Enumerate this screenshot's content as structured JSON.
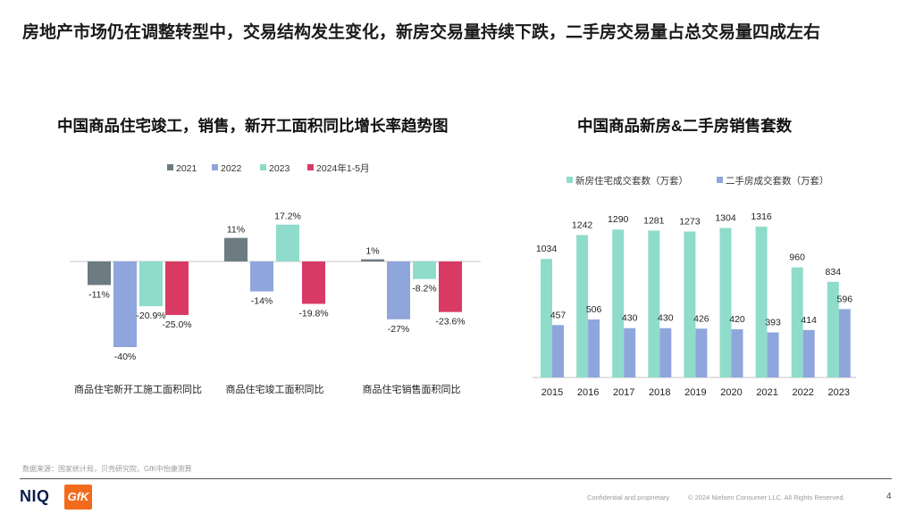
{
  "slide_title": "房地产市场仍在调整转型中，交易结构发生变化，新房交易量持续下跌，二手房交易量占总交易量四成左右",
  "chart_data": [
    {
      "type": "bar",
      "title": "中国商品住宅竣工，销售，新开工面积同比增长率趋势图",
      "categories": [
        "商品住宅新开工施工面积同比",
        "商品住宅竣工面积同比",
        "商品住宅销售面积同比"
      ],
      "series": [
        {
          "name": "2021",
          "color": "#6d7b82",
          "values": [
            -11,
            11,
            1
          ],
          "labels": [
            "-11%",
            "11%",
            "1%"
          ]
        },
        {
          "name": "2022",
          "color": "#8fa6dc",
          "values": [
            -40,
            -14,
            -27
          ],
          "labels": [
            "-40%",
            "-14%",
            "-27%"
          ]
        },
        {
          "name": "2023",
          "color": "#8fdccb",
          "values": [
            -20.9,
            17.2,
            -8.2
          ],
          "labels": [
            "-20.9%",
            "17.2%",
            "-8.2%"
          ]
        },
        {
          "name": "2024年1-5月",
          "color": "#d93a64",
          "values": [
            -25.0,
            -19.8,
            -23.6
          ],
          "labels": [
            "-25.0%",
            "-19.8%",
            "-23.6%"
          ]
        }
      ],
      "legend": "top",
      "ylim": [
        -45,
        20
      ],
      "grid": false
    },
    {
      "type": "bar",
      "title": "中国商品新房&二手房销售套数",
      "categories": [
        "2015",
        "2016",
        "2017",
        "2018",
        "2019",
        "2020",
        "2021",
        "2022",
        "2023"
      ],
      "series": [
        {
          "name": "新房住宅成交套数（万套）",
          "color": "#8fdccb",
          "values": [
            1034,
            1242,
            1290,
            1281,
            1273,
            1304,
            1316,
            960,
            834
          ]
        },
        {
          "name": "二手房成交套数（万套）",
          "color": "#8fa6dc",
          "values": [
            457,
            506,
            430,
            430,
            426,
            420,
            393,
            414,
            596
          ]
        }
      ],
      "legend": "top",
      "ylim": [
        0,
        1400
      ],
      "grid": false
    }
  ],
  "source": "数据来源：国家统计局，贝壳研究院，GfK中怡康测算",
  "footer": {
    "logo_niq": "NIQ",
    "logo_gfk": "GfK",
    "confidential": "Confidential and proprietary",
    "copyright": "© 2024 Nielsen Consumer LLC. All Rights Reserved.",
    "page_number": "4"
  }
}
